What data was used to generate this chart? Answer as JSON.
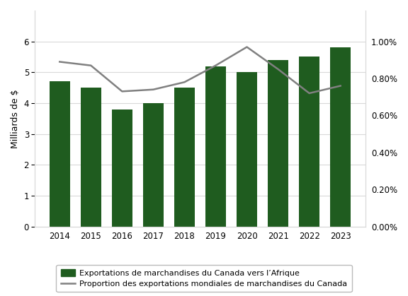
{
  "years": [
    2014,
    2015,
    2016,
    2017,
    2018,
    2019,
    2020,
    2021,
    2022,
    2023
  ],
  "bar_values": [
    4.7,
    4.5,
    3.8,
    4.0,
    4.5,
    5.2,
    5.0,
    5.4,
    5.5,
    5.8
  ],
  "line_values": [
    0.89,
    0.87,
    0.73,
    0.74,
    0.78,
    0.87,
    0.97,
    0.85,
    0.72,
    0.76
  ],
  "bar_color": "#1f5c1f",
  "line_color": "#808080",
  "ylabel_left": "Milliards de $",
  "ylim_left": [
    0,
    7
  ],
  "ylim_right": [
    0,
    1.1667
  ],
  "yticks_left": [
    0,
    1,
    2,
    3,
    4,
    5,
    6
  ],
  "yticks_right": [
    0.0,
    0.002,
    0.004,
    0.006,
    0.008,
    0.01
  ],
  "ytick_labels_right": [
    "0.00%",
    "0.20%",
    "0.40%",
    "0.60%",
    "0.80%",
    "1.00%"
  ],
  "legend_bar": "Exportations de marchandises du Canada vers l’Afrique",
  "legend_line": "Proportion des exportations mondiales de marchandises du Canada",
  "background_color": "#ffffff",
  "grid_color": "#d9d9d9",
  "spine_color": "#d9d9d9",
  "line_width": 1.8,
  "bar_width": 0.65,
  "tick_fontsize": 8.5,
  "ylabel_fontsize": 9,
  "legend_fontsize": 8
}
